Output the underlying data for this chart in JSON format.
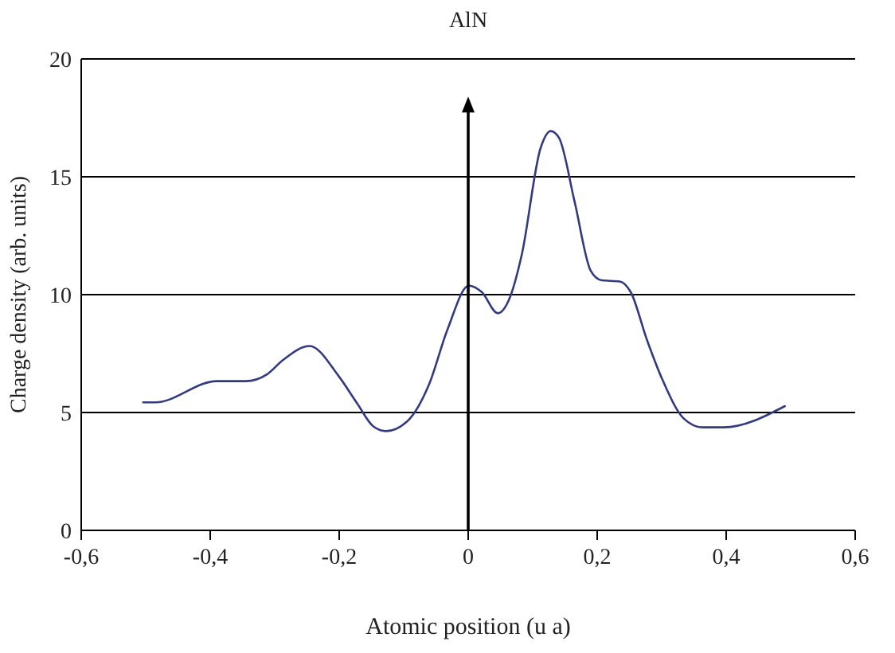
{
  "chart_data": {
    "type": "line",
    "title": "AlN",
    "xlabel": "Atomic position (u a)",
    "ylabel": "Charge density (arb. units)",
    "xlim": [
      -0.6,
      0.6
    ],
    "ylim": [
      0,
      20
    ],
    "xticks": [
      {
        "value": -0.6,
        "label": "-0,6"
      },
      {
        "value": -0.4,
        "label": "-0,4"
      },
      {
        "value": -0.2,
        "label": "-0,2"
      },
      0,
      {
        "value": 0.2,
        "label": "0,2"
      },
      {
        "value": 0.4,
        "label": "0,4"
      },
      {
        "value": 0.6,
        "label": "0,6"
      }
    ],
    "yticks": [
      0,
      5,
      10,
      15,
      20
    ],
    "grid": "y",
    "marker": "none",
    "line_style": "solid",
    "ref_lines": [
      {
        "axis": "x",
        "value": 0
      }
    ],
    "series": [
      {
        "color": "#333a80",
        "x": [
          -0.504,
          -0.485,
          -0.39,
          -0.345,
          -0.312,
          -0.287,
          -0.246,
          -0.201,
          -0.172,
          -0.147,
          -0.127,
          -0.094,
          -0.061,
          -0.032,
          0.001,
          0.021,
          0.046,
          0.063,
          0.083,
          0.112,
          0.128,
          0.141,
          0.165,
          0.19,
          0.207,
          0.235,
          0.252,
          0.277,
          0.301,
          0.334,
          0.363,
          0.396,
          0.491
        ],
        "values": [
          5.43,
          5.43,
          6.33,
          6.33,
          6.62,
          7.23,
          7.82,
          6.55,
          5.38,
          4.41,
          4.21,
          4.64,
          6.17,
          8.53,
          10.38,
          10.11,
          9.21,
          9.77,
          11.69,
          16.2,
          16.94,
          16.64,
          13.94,
          11.01,
          10.61,
          10.56,
          10.11,
          8.09,
          6.4,
          4.75,
          4.37,
          4.37,
          5.27
        ]
      }
    ]
  }
}
